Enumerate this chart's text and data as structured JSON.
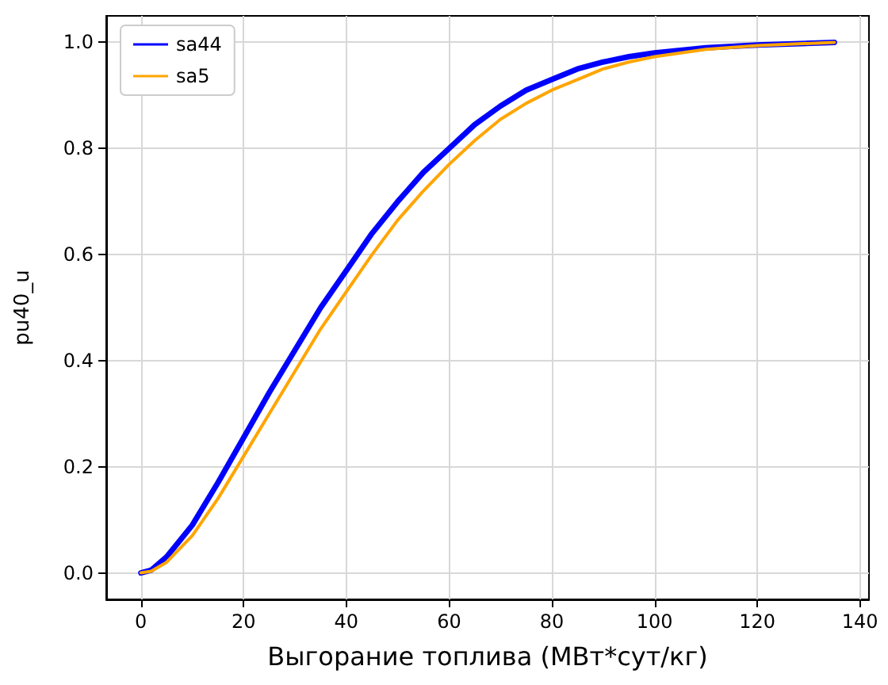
{
  "chart_data": {
    "type": "line",
    "xlabel": "Выгорание топлива (МВт*сут/кг)",
    "ylabel": "pu40_u",
    "xlim": [
      -6.75,
      141.75
    ],
    "ylim": [
      -0.05,
      1.05
    ],
    "xticks": [
      0,
      20,
      40,
      60,
      80,
      100,
      120,
      140
    ],
    "yticks": [
      {
        "value": 0,
        "label": "0.0"
      },
      {
        "value": 0.2,
        "label": "0.2"
      },
      {
        "value": 0.4,
        "label": "0.4"
      },
      {
        "value": 0.6,
        "label": "0.6"
      },
      {
        "value": 0.8,
        "label": "0.8"
      },
      {
        "value": 1,
        "label": "1.0"
      }
    ],
    "grid": true,
    "legend": "top left",
    "marker": "none",
    "line_style": "solid",
    "series": [
      {
        "name": "sa44",
        "color": "#0000ff",
        "x": [
          0,
          2,
          5,
          10,
          15,
          20,
          25,
          30,
          35,
          40,
          45,
          50,
          55,
          60,
          65,
          70,
          75,
          80,
          85,
          90,
          95,
          100,
          110,
          120,
          135
        ],
        "values": [
          0,
          0.005,
          0.03,
          0.09,
          0.17,
          0.255,
          0.34,
          0.42,
          0.5,
          0.57,
          0.64,
          0.7,
          0.755,
          0.8,
          0.845,
          0.88,
          0.91,
          0.93,
          0.95,
          0.963,
          0.973,
          0.98,
          0.99,
          0.995,
          1.0
        ]
      },
      {
        "name": "sa5",
        "color": "#ffa500",
        "x": [
          0,
          2,
          5,
          10,
          15,
          20,
          25,
          30,
          35,
          40,
          45,
          50,
          55,
          60,
          65,
          70,
          75,
          80,
          85,
          90,
          95,
          100,
          110,
          120,
          135
        ],
        "values": [
          0,
          0.003,
          0.02,
          0.07,
          0.14,
          0.22,
          0.3,
          0.38,
          0.46,
          0.53,
          0.6,
          0.665,
          0.72,
          0.77,
          0.815,
          0.855,
          0.885,
          0.91,
          0.93,
          0.95,
          0.963,
          0.973,
          0.987,
          0.994,
          1.0
        ]
      }
    ]
  }
}
